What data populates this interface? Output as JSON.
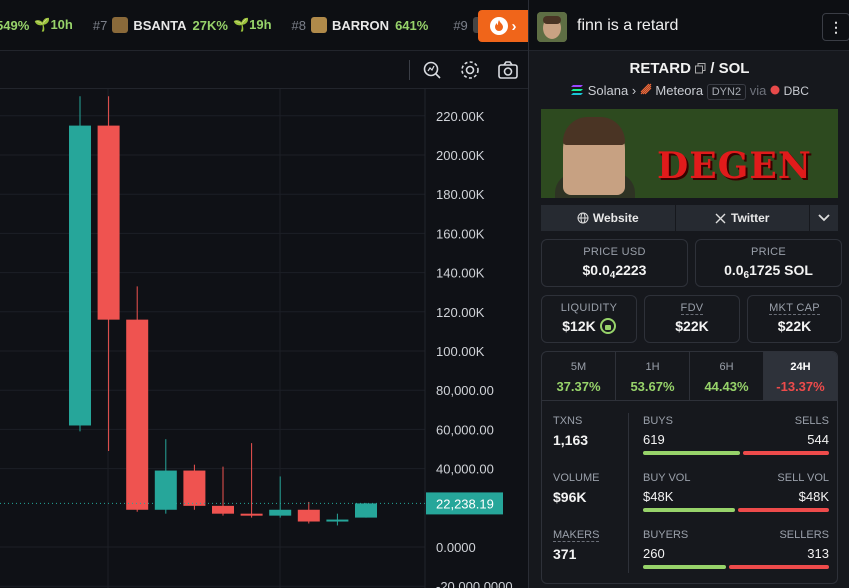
{
  "ticker": {
    "partial_pct": "549%",
    "partial_age": "10h",
    "items": [
      {
        "rank": "#7",
        "symbol": "BSANTA",
        "pct": "27K%",
        "age": "19h"
      },
      {
        "rank": "#8",
        "symbol": "BARRON",
        "pct": "641%",
        "age": ""
      },
      {
        "rank": "#9",
        "symbol": "",
        "pct": "",
        "age": ""
      }
    ],
    "fire_label": "›"
  },
  "colors": {
    "up": "#26a69a",
    "down": "#ef5350",
    "green_text": "#97d36a",
    "red_text": "#ee4b4b",
    "accent_fire": "#f0651a",
    "degen_red": "#e11b1b"
  },
  "chart_data": {
    "type": "candlestick",
    "y_ticks": [
      "220.00K",
      "200.00K",
      "180.00K",
      "160.00K",
      "140.00K",
      "120.00K",
      "100.00K",
      "80,000.00",
      "60,000.00",
      "40,000.00",
      "0.0000",
      "-20,000.0000"
    ],
    "current_price_label": "22,238.19",
    "candles": [
      {
        "open": 62000,
        "high": 230000,
        "low": 59000,
        "close": 215000
      },
      {
        "open": 215000,
        "high": 230000,
        "low": 49000,
        "close": 116000
      },
      {
        "open": 116000,
        "high": 133000,
        "low": 18000,
        "close": 19000
      },
      {
        "open": 19000,
        "high": 55000,
        "low": 17000,
        "close": 39000
      },
      {
        "open": 39000,
        "high": 42000,
        "low": 19000,
        "close": 21000
      },
      {
        "open": 21000,
        "high": 41000,
        "low": 16000,
        "close": 17000
      },
      {
        "open": 17000,
        "high": 53000,
        "low": 15000,
        "close": 16000
      },
      {
        "open": 16000,
        "high": 36000,
        "low": 15000,
        "close": 19000
      },
      {
        "open": 19000,
        "high": 23000,
        "low": 12000,
        "close": 13000
      },
      {
        "open": 13000,
        "high": 17000,
        "low": 11000,
        "close": 14000
      },
      {
        "open": 15000,
        "high": 22500,
        "low": 15000,
        "close": 22238
      }
    ]
  },
  "panel": {
    "title": "finn is a retard",
    "more_icon": "⋮",
    "pair_base": "RETARD",
    "pair_sep": "/",
    "pair_quote": "SOL",
    "chain": "Solana",
    "dex": "Meteora",
    "dex_tag": "DYN2",
    "via": "via",
    "via_name": "DBC",
    "banner_text": "DEGEN",
    "website_label": "Website",
    "twitter_label": "Twitter",
    "price_usd_label": "PRICE USD",
    "price_usd_prefix": "$0.0",
    "price_usd_sub": "4",
    "price_usd_rest": "2223",
    "price_label": "PRICE",
    "price_prefix": "0.0",
    "price_sub": "6",
    "price_rest": "1725 SOL",
    "liquidity_label": "LIQUIDITY",
    "liquidity_value": "$12K",
    "fdv_label": "FDV",
    "fdv_value": "$22K",
    "mktcap_label": "MKT CAP",
    "mktcap_value": "$22K",
    "timeframes": [
      {
        "label": "5M",
        "value": "37.37%",
        "dir": "up"
      },
      {
        "label": "1H",
        "value": "53.67%",
        "dir": "up"
      },
      {
        "label": "6H",
        "value": "44.43%",
        "dir": "up"
      },
      {
        "label": "24H",
        "value": "-13.37%",
        "dir": "down"
      }
    ],
    "txns_label": "TXNS",
    "txns_value": "1,163",
    "buys_label": "BUYS",
    "buys_value": "619",
    "sells_label": "SELLS",
    "sells_value": "544",
    "buys_frac": 0.532,
    "volume_label": "VOLUME",
    "volume_value": "$96K",
    "buyvol_label": "BUY VOL",
    "buyvol_value": "$48K",
    "sellvol_label": "SELL VOL",
    "sellvol_value": "$48K",
    "buyvol_frac": 0.5,
    "makers_label": "MAKERS",
    "makers_value": "371",
    "buyers_label": "BUYERS",
    "buyers_value": "260",
    "sellers_label": "SELLERS",
    "sellers_value": "313",
    "buyers_frac": 0.454
  }
}
